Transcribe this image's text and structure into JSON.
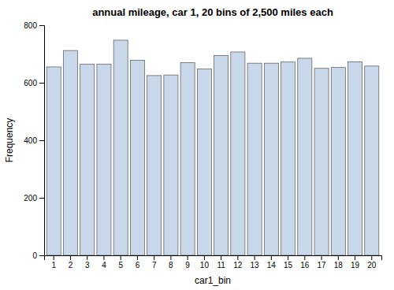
{
  "chart_data": {
    "type": "bar",
    "title": "annual mileage, car 1, 20 bins of 2,500 miles each",
    "x_label": "car1_bin",
    "y_label": "Frequency",
    "categories": [
      1,
      2,
      3,
      4,
      5,
      6,
      7,
      8,
      9,
      10,
      11,
      12,
      13,
      14,
      15,
      16,
      17,
      18,
      19,
      20
    ],
    "values": [
      655,
      712,
      665,
      665,
      748,
      678,
      625,
      627,
      670,
      648,
      695,
      707,
      668,
      668,
      672,
      685,
      650,
      653,
      673,
      658
    ],
    "color": "#c8d8ea",
    "ylim": [
      0,
      800
    ],
    "yticks": [
      0,
      200,
      400,
      600,
      800
    ],
    "grid": false
  }
}
